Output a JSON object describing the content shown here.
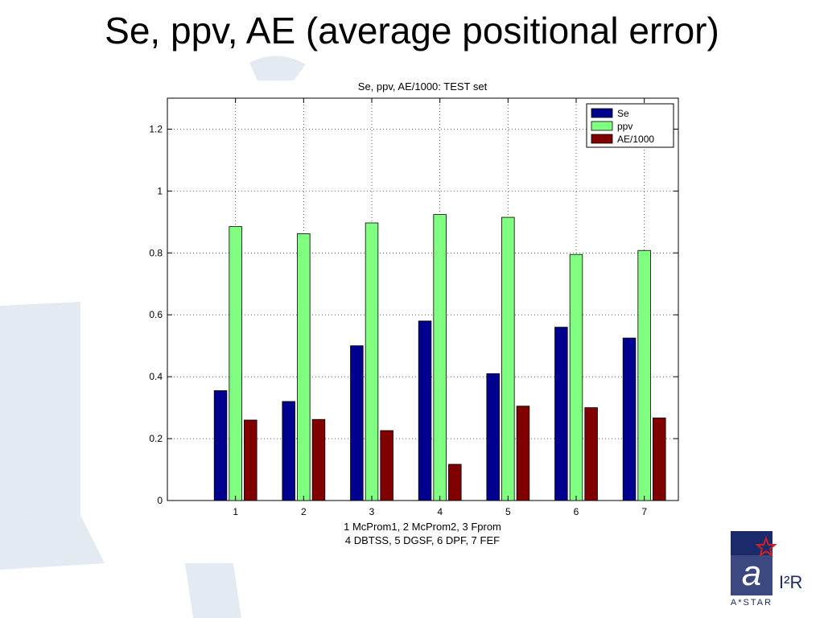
{
  "slide": {
    "title": "Se, ppv, AE (average positional error)"
  },
  "chart_data": {
    "type": "bar",
    "title": "Se, ppv, AE/1000: TEST set",
    "categories": [
      "1",
      "2",
      "3",
      "4",
      "5",
      "6",
      "7"
    ],
    "xlabel_lines": [
      "1 McProm1, 2 McProm2, 3 Fprom",
      "4 DBTSS, 5 DGSF, 6 DPF, 7 FEF"
    ],
    "ylabel": "",
    "ylim": [
      0,
      1.3
    ],
    "yticks": [
      0,
      0.2,
      0.4,
      0.6,
      0.8,
      1,
      1.2
    ],
    "ytick_labels": [
      "0",
      "0.2",
      "0.4",
      "0.6",
      "0.8",
      "1",
      "1.2"
    ],
    "grid": true,
    "legend_position": "top-right",
    "series": [
      {
        "name": "Se",
        "color": "#00008f",
        "values": [
          0.355,
          0.32,
          0.5,
          0.58,
          0.41,
          0.56,
          0.525
        ]
      },
      {
        "name": "ppv",
        "color": "#80ff80",
        "values": [
          0.885,
          0.862,
          0.897,
          0.924,
          0.915,
          0.795,
          0.808
        ]
      },
      {
        "name": "AE/1000",
        "color": "#800000",
        "values": [
          0.26,
          0.262,
          0.226,
          0.117,
          0.305,
          0.3,
          0.267
        ]
      }
    ]
  },
  "logo": {
    "mark": "a",
    "org": "A*STAR",
    "institute": "I²R",
    "colors": {
      "navy": "#1a2a6b",
      "red": "#cc2222"
    }
  }
}
